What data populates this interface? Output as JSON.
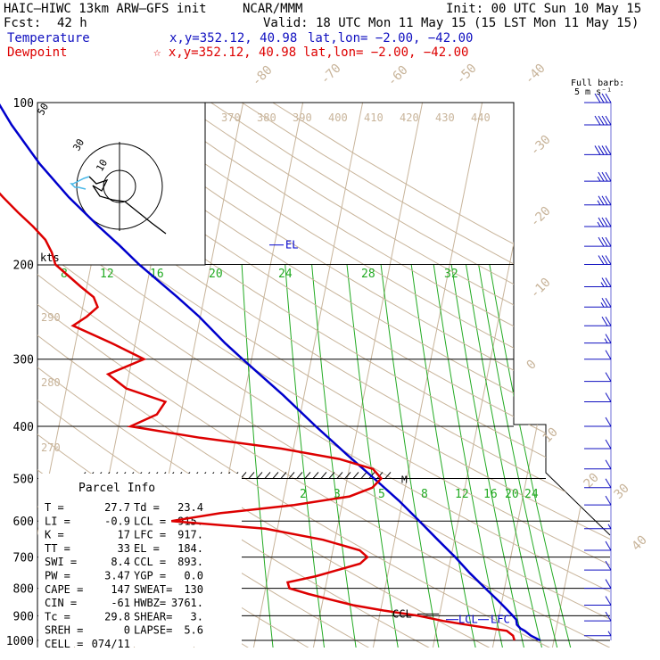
{
  "header": {
    "model": "HAIC–HIWC 13km ARW–GFS init",
    "org": "NCAR/MMM",
    "init": "Init: 00 UTC Sun 10 May 15",
    "fcst_label": "Fcst:",
    "fcst_value": "42 h",
    "valid": "Valid: 18 UTC Mon 11 May 15 (15 LST Mon 11 May 15)",
    "temp_label": "Temperature",
    "temp_loc": "x,y=352.12, 40.98",
    "temp_latlon": "lat,lon= −2.00, −42.00",
    "dew_label": "Dewpoint",
    "dew_loc": "☆ x,y=352.12, 40.98",
    "dew_latlon": "lat,lon= −2.00, −42.00"
  },
  "colors": {
    "temperature": "#0000cc",
    "dewpoint": "#dd0000",
    "theta": "#c8b49a",
    "mixing_ratio": "#22aa22",
    "header_blue": "#1010c0",
    "header_red": "#dd0000"
  },
  "barb_legend": {
    "line1": "Full barb:",
    "line2": "5 m s⁻¹"
  },
  "hodograph": {
    "ring_labels": [
      "50",
      "30",
      "10"
    ],
    "unit": "kts"
  },
  "parcel_info": {
    "title": "Parcel Info",
    "rows": [
      [
        "T  =",
        "27.7",
        "Td =",
        "23.4"
      ],
      [
        "LI =",
        "-0.9",
        "LCL =",
        "915."
      ],
      [
        "K  =",
        "17",
        "LFC =",
        "917."
      ],
      [
        "TT =",
        "33",
        "EL =",
        "184."
      ],
      [
        "SWI =",
        "8.4",
        "CCL =",
        "893."
      ],
      [
        "PW =",
        "3.47",
        "YGP =",
        "0.0"
      ],
      [
        "CAPE =",
        "147",
        "SWEAT=",
        "130"
      ],
      [
        "CIN =",
        "-61",
        "HWBZ=",
        "3761."
      ],
      [
        "Tc =",
        "29.8",
        "SHEAR=",
        "3."
      ],
      [
        "SREH =",
        "0",
        "LAPSE=",
        "5.6"
      ],
      [
        "CELL =",
        "074/11",
        "",
        ""
      ]
    ]
  },
  "level_labels": {
    "el": "EL",
    "ccl": "CCL",
    "lcl": "LCL",
    "lfc": "LFC",
    "m": "M"
  },
  "chart_data": {
    "type": "line",
    "y_axis": "pressure (hPa), log scale",
    "pressure_ticks": [
      100,
      200,
      300,
      400,
      500,
      600,
      700,
      800,
      900,
      1000
    ],
    "temperature_isotherm_labels": [
      "-80",
      "-70",
      "-60",
      "-50",
      "-40",
      "-30",
      "-20",
      "-10",
      "0",
      "10",
      "20",
      "30",
      "40"
    ],
    "theta_labels_top": [
      "370",
      "380",
      "390",
      "400",
      "410",
      "420",
      "430",
      "440"
    ],
    "theta_labels_left": [
      "290",
      "280",
      "270"
    ],
    "mixing_ratio_labels_200": [
      "8",
      "12",
      "16",
      "20",
      "24",
      "28",
      "32"
    ],
    "mixing_ratio_labels_500": [
      "2",
      "3",
      "5",
      "8",
      "12",
      "16",
      "20",
      "24"
    ],
    "series": [
      {
        "name": "Temperature",
        "p": [
          1000,
          980,
          960,
          950,
          935,
          915,
          900,
          880,
          850,
          800,
          750,
          700,
          650,
          600,
          550,
          500,
          450,
          400,
          350,
          300,
          280,
          250,
          230,
          200,
          184,
          170,
          150,
          130,
          110,
          100
        ],
        "t": [
          27.7,
          26.0,
          24.8,
          24.0,
          23.3,
          23.0,
          22.3,
          21.3,
          19.7,
          16.8,
          13.7,
          10.7,
          7.2,
          3.5,
          -0.6,
          -5.5,
          -11.0,
          -17.0,
          -23.5,
          -31.5,
          -35.0,
          -40.2,
          -44.5,
          -52.0,
          -56.0,
          -60.0,
          -66.0,
          -72.0,
          -78.0,
          -81.0
        ]
      },
      {
        "name": "Dewpoint",
        "p": [
          1000,
          980,
          960,
          940,
          920,
          900,
          880,
          860,
          840,
          820,
          800,
          780,
          760,
          740,
          720,
          700,
          680,
          650,
          620,
          600,
          580,
          560,
          540,
          520,
          500,
          480,
          460,
          440,
          420,
          400,
          380,
          360,
          340,
          320,
          300,
          280,
          260,
          250,
          240,
          230,
          220,
          200,
          190,
          180,
          170,
          160,
          150,
          140,
          120,
          110,
          100
        ],
        "td": [
          23.4,
          23.0,
          21.8,
          16.2,
          10.8,
          6.5,
          0.5,
          -4.8,
          -8.7,
          -12.6,
          -16.0,
          -16.5,
          -12.0,
          -8.5,
          -5.0,
          -4.0,
          -5.5,
          -12.0,
          -22.0,
          -38.0,
          -30.0,
          -18.0,
          -9.0,
          -5.5,
          -4.3,
          -6.0,
          -12.0,
          -22.0,
          -36.0,
          -48.0,
          -44.0,
          -43.0,
          -50.0,
          -53.5,
          -48.0,
          -54.0,
          -61.0,
          -59.0,
          -57.5,
          -58.5,
          -61.0,
          -66.0,
          -67.0,
          -68.5,
          -71.0,
          -74.0,
          -77.0,
          -80.0,
          -83.0,
          -85.5,
          -87.5
        ]
      }
    ],
    "hodograph_trace_kts": [
      [
        0,
        0
      ],
      [
        -5,
        -3
      ],
      [
        -9,
        -6
      ],
      [
        -13,
        -8
      ],
      [
        -16,
        -11
      ],
      [
        -19,
        -14
      ],
      [
        -21,
        -18
      ],
      [
        -23,
        -21
      ],
      [
        -25,
        -24
      ],
      [
        -26,
        -27
      ],
      [
        -25,
        -29
      ],
      [
        -23,
        -31
      ],
      [
        -20,
        -30
      ],
      [
        -18,
        -28
      ],
      [
        -14,
        -27
      ],
      [
        -12,
        -25
      ],
      [
        -7,
        -24
      ],
      [
        -3,
        -24
      ],
      [
        1,
        -23
      ],
      [
        4,
        -23
      ],
      [
        9,
        -20
      ],
      [
        13,
        -17
      ],
      [
        18,
        -13
      ],
      [
        23,
        -9
      ],
      [
        29,
        -4
      ],
      [
        33,
        0
      ]
    ],
    "hodograph_trace_low_kts": [
      [
        -25,
        -24
      ],
      [
        -27,
        -26
      ],
      [
        -29,
        -27
      ],
      [
        -31,
        -27
      ],
      [
        -32,
        -26
      ],
      [
        -31,
        -24
      ],
      [
        -29,
        -23
      ],
      [
        -27,
        -23
      ]
    ],
    "wind_profile": [
      {
        "p": 100,
        "spd": 40,
        "dir": 70
      },
      {
        "p": 110,
        "spd": 40,
        "dir": 72
      },
      {
        "p": 125,
        "spd": 40,
        "dir": 75
      },
      {
        "p": 140,
        "spd": 35,
        "dir": 78
      },
      {
        "p": 155,
        "spd": 35,
        "dir": 80
      },
      {
        "p": 170,
        "spd": 35,
        "dir": 82
      },
      {
        "p": 185,
        "spd": 30,
        "dir": 85
      },
      {
        "p": 200,
        "spd": 30,
        "dir": 88
      },
      {
        "p": 220,
        "spd": 25,
        "dir": 92
      },
      {
        "p": 240,
        "spd": 25,
        "dir": 95
      },
      {
        "p": 260,
        "spd": 20,
        "dir": 100
      },
      {
        "p": 280,
        "spd": 15,
        "dir": 110
      },
      {
        "p": 300,
        "spd": 10,
        "dir": 130
      },
      {
        "p": 330,
        "spd": 10,
        "dir": 220
      },
      {
        "p": 360,
        "spd": 10,
        "dir": 240
      },
      {
        "p": 400,
        "spd": 10,
        "dir": 250
      },
      {
        "p": 440,
        "spd": 10,
        "dir": 255
      },
      {
        "p": 480,
        "spd": 10,
        "dir": 250
      },
      {
        "p": 520,
        "spd": 10,
        "dir": 240
      },
      {
        "p": 560,
        "spd": 10,
        "dir": 200
      },
      {
        "p": 620,
        "spd": 5,
        "dir": 140
      },
      {
        "p": 680,
        "spd": 10,
        "dir": 110
      },
      {
        "p": 740,
        "spd": 10,
        "dir": 105
      },
      {
        "p": 800,
        "spd": 10,
        "dir": 100
      },
      {
        "p": 860,
        "spd": 10,
        "dir": 95
      },
      {
        "p": 920,
        "spd": 10,
        "dir": 90
      },
      {
        "p": 980,
        "spd": 5,
        "dir": 90
      }
    ]
  }
}
